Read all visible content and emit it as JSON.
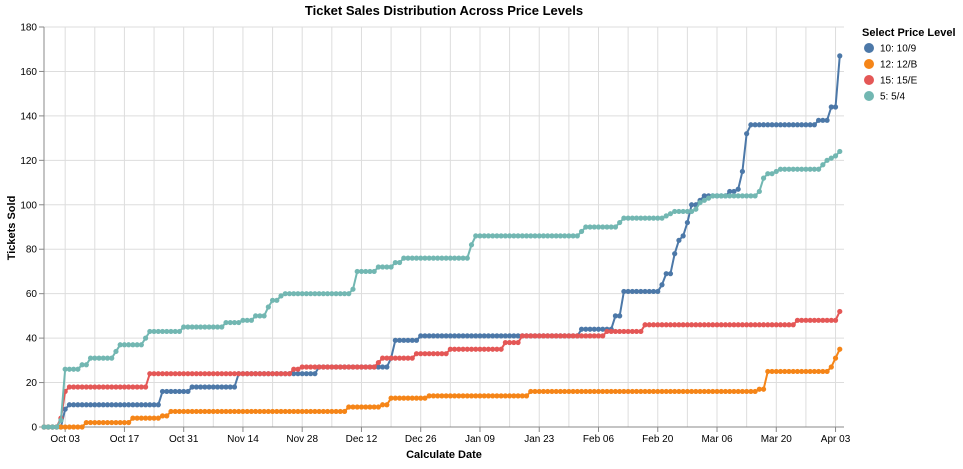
{
  "chart_data": {
    "type": "line",
    "title": "Ticket Sales Distribution Across Price Levels",
    "xlabel": "Calculate Date",
    "ylabel": "Tickets Sold",
    "ylim": [
      0,
      180
    ],
    "xlim": [
      "2022-09-28",
      "2023-04-05"
    ],
    "x_ticks": [
      {
        "date": "2022-10-03",
        "label": "Oct 03"
      },
      {
        "date": "2022-10-17",
        "label": "Oct 17"
      },
      {
        "date": "2022-10-31",
        "label": "Oct 31"
      },
      {
        "date": "2022-11-14",
        "label": "Nov 14"
      },
      {
        "date": "2022-11-28",
        "label": "Nov 28"
      },
      {
        "date": "2022-12-12",
        "label": "Dec 12"
      },
      {
        "date": "2022-12-26",
        "label": "Dec 26"
      },
      {
        "date": "2023-01-09",
        "label": "Jan 09"
      },
      {
        "date": "2023-01-23",
        "label": "Jan 23"
      },
      {
        "date": "2023-02-06",
        "label": "Feb 06"
      },
      {
        "date": "2023-02-20",
        "label": "Feb 20"
      },
      {
        "date": "2023-03-06",
        "label": "Mar 06"
      },
      {
        "date": "2023-03-20",
        "label": "Mar 20"
      },
      {
        "date": "2023-04-03",
        "label": "Apr 03"
      }
    ],
    "y_ticks": [
      0,
      20,
      40,
      60,
      80,
      100,
      120,
      140,
      160,
      180
    ],
    "grid": true,
    "legend": {
      "title": "Select Price Level",
      "position": "top-right"
    },
    "series": [
      {
        "name": "10: 10/9",
        "color": "#4c78a8",
        "points": [
          [
            "2022-09-28",
            0
          ],
          [
            "2022-10-02",
            0
          ],
          [
            "2022-10-03",
            8
          ],
          [
            "2022-10-04",
            10
          ],
          [
            "2022-10-25",
            10
          ],
          [
            "2022-10-26",
            16
          ],
          [
            "2022-11-01",
            16
          ],
          [
            "2022-11-02",
            18
          ],
          [
            "2022-11-12",
            18
          ],
          [
            "2022-11-13",
            24
          ],
          [
            "2022-12-01",
            24
          ],
          [
            "2022-12-02",
            27
          ],
          [
            "2022-12-18",
            27
          ],
          [
            "2022-12-19",
            31
          ],
          [
            "2022-12-20",
            39
          ],
          [
            "2022-12-25",
            39
          ],
          [
            "2022-12-26",
            41
          ],
          [
            "2023-02-01",
            41
          ],
          [
            "2023-02-02",
            44
          ],
          [
            "2023-02-09",
            44
          ],
          [
            "2023-02-10",
            50
          ],
          [
            "2023-02-11",
            50
          ],
          [
            "2023-02-12",
            61
          ],
          [
            "2023-02-20",
            61
          ],
          [
            "2023-02-21",
            64
          ],
          [
            "2023-02-22",
            69
          ],
          [
            "2023-02-23",
            69
          ],
          [
            "2023-02-24",
            78
          ],
          [
            "2023-02-25",
            84
          ],
          [
            "2023-02-26",
            86
          ],
          [
            "2023-02-27",
            92
          ],
          [
            "2023-02-28",
            100
          ],
          [
            "2023-03-01",
            100
          ],
          [
            "2023-03-02",
            102
          ],
          [
            "2023-03-03",
            104
          ],
          [
            "2023-03-08",
            104
          ],
          [
            "2023-03-09",
            106
          ],
          [
            "2023-03-10",
            106
          ],
          [
            "2023-03-11",
            107
          ],
          [
            "2023-03-12",
            115
          ],
          [
            "2023-03-13",
            132
          ],
          [
            "2023-03-14",
            136
          ],
          [
            "2023-03-29",
            136
          ],
          [
            "2023-03-30",
            138
          ],
          [
            "2023-04-01",
            138
          ],
          [
            "2023-04-02",
            144
          ],
          [
            "2023-04-03",
            144
          ],
          [
            "2023-04-04",
            167
          ]
        ]
      },
      {
        "name": "12: 12/B",
        "color": "#f58518",
        "points": [
          [
            "2022-09-28",
            0
          ],
          [
            "2022-10-07",
            0
          ],
          [
            "2022-10-08",
            2
          ],
          [
            "2022-10-18",
            2
          ],
          [
            "2022-10-19",
            4
          ],
          [
            "2022-10-25",
            4
          ],
          [
            "2022-10-26",
            5
          ],
          [
            "2022-10-28",
            7
          ],
          [
            "2022-12-08",
            7
          ],
          [
            "2022-12-09",
            9
          ],
          [
            "2022-12-16",
            9
          ],
          [
            "2022-12-17",
            10
          ],
          [
            "2022-12-19",
            13
          ],
          [
            "2022-12-27",
            13
          ],
          [
            "2022-12-28",
            14
          ],
          [
            "2023-01-20",
            14
          ],
          [
            "2023-01-21",
            16
          ],
          [
            "2023-03-15",
            16
          ],
          [
            "2023-03-16",
            17
          ],
          [
            "2023-03-17",
            17
          ],
          [
            "2023-03-18",
            25
          ],
          [
            "2023-04-01",
            25
          ],
          [
            "2023-04-02",
            27
          ],
          [
            "2023-04-03",
            31
          ],
          [
            "2023-04-04",
            35
          ]
        ]
      },
      {
        "name": "15: 15/E",
        "color": "#e45756",
        "points": [
          [
            "2022-09-28",
            0
          ],
          [
            "2022-10-01",
            0
          ],
          [
            "2022-10-02",
            4
          ],
          [
            "2022-10-03",
            16
          ],
          [
            "2022-10-04",
            18
          ],
          [
            "2022-10-22",
            18
          ],
          [
            "2022-10-23",
            24
          ],
          [
            "2022-11-25",
            24
          ],
          [
            "2022-11-26",
            26
          ],
          [
            "2022-11-28",
            27
          ],
          [
            "2022-12-15",
            27
          ],
          [
            "2022-12-16",
            29
          ],
          [
            "2022-12-17",
            31
          ],
          [
            "2022-12-24",
            31
          ],
          [
            "2022-12-25",
            33
          ],
          [
            "2023-01-01",
            33
          ],
          [
            "2023-01-02",
            35
          ],
          [
            "2023-01-14",
            35
          ],
          [
            "2023-01-15",
            38
          ],
          [
            "2023-01-18",
            38
          ],
          [
            "2023-01-19",
            41
          ],
          [
            "2023-02-07",
            41
          ],
          [
            "2023-02-08",
            43
          ],
          [
            "2023-02-16",
            43
          ],
          [
            "2023-02-17",
            46
          ],
          [
            "2023-03-24",
            46
          ],
          [
            "2023-03-25",
            48
          ],
          [
            "2023-04-03",
            48
          ],
          [
            "2023-04-04",
            52
          ]
        ]
      },
      {
        "name": "5: 5/4",
        "color": "#72b7b2",
        "points": [
          [
            "2022-09-28",
            0
          ],
          [
            "2022-10-01",
            0
          ],
          [
            "2022-10-02",
            3
          ],
          [
            "2022-10-03",
            26
          ],
          [
            "2022-10-06",
            26
          ],
          [
            "2022-10-07",
            28
          ],
          [
            "2022-10-09",
            31
          ],
          [
            "2022-10-14",
            31
          ],
          [
            "2022-10-15",
            34
          ],
          [
            "2022-10-16",
            37
          ],
          [
            "2022-10-21",
            37
          ],
          [
            "2022-10-22",
            40
          ],
          [
            "2022-10-23",
            43
          ],
          [
            "2022-10-30",
            43
          ],
          [
            "2022-10-31",
            45
          ],
          [
            "2022-11-09",
            45
          ],
          [
            "2022-11-10",
            47
          ],
          [
            "2022-11-13",
            47
          ],
          [
            "2022-11-14",
            48
          ],
          [
            "2022-11-17",
            50
          ],
          [
            "2022-11-19",
            50
          ],
          [
            "2022-11-20",
            54
          ],
          [
            "2022-11-21",
            57
          ],
          [
            "2022-11-23",
            59
          ],
          [
            "2022-11-24",
            60
          ],
          [
            "2022-12-09",
            60
          ],
          [
            "2022-12-10",
            62
          ],
          [
            "2022-12-11",
            70
          ],
          [
            "2022-12-15",
            70
          ],
          [
            "2022-12-16",
            72
          ],
          [
            "2022-12-19",
            72
          ],
          [
            "2022-12-20",
            74
          ],
          [
            "2022-12-22",
            76
          ],
          [
            "2023-01-06",
            76
          ],
          [
            "2023-01-07",
            82
          ],
          [
            "2023-01-08",
            86
          ],
          [
            "2023-02-01",
            86
          ],
          [
            "2023-02-02",
            88
          ],
          [
            "2023-02-03",
            90
          ],
          [
            "2023-02-10",
            90
          ],
          [
            "2023-02-11",
            92
          ],
          [
            "2023-02-12",
            94
          ],
          [
            "2023-02-21",
            94
          ],
          [
            "2023-02-22",
            95
          ],
          [
            "2023-02-23",
            96
          ],
          [
            "2023-02-24",
            97
          ],
          [
            "2023-02-28",
            97
          ],
          [
            "2023-03-01",
            98
          ],
          [
            "2023-03-02",
            101
          ],
          [
            "2023-03-03",
            102
          ],
          [
            "2023-03-04",
            103
          ],
          [
            "2023-03-05",
            104
          ],
          [
            "2023-03-15",
            104
          ],
          [
            "2023-03-16",
            106
          ],
          [
            "2023-03-17",
            112
          ],
          [
            "2023-03-18",
            114
          ],
          [
            "2023-03-20",
            115
          ],
          [
            "2023-03-21",
            116
          ],
          [
            "2023-03-30",
            116
          ],
          [
            "2023-03-31",
            118
          ],
          [
            "2023-04-01",
            120
          ],
          [
            "2023-04-02",
            121
          ],
          [
            "2023-04-03",
            122
          ],
          [
            "2023-04-04",
            124
          ]
        ]
      }
    ]
  }
}
